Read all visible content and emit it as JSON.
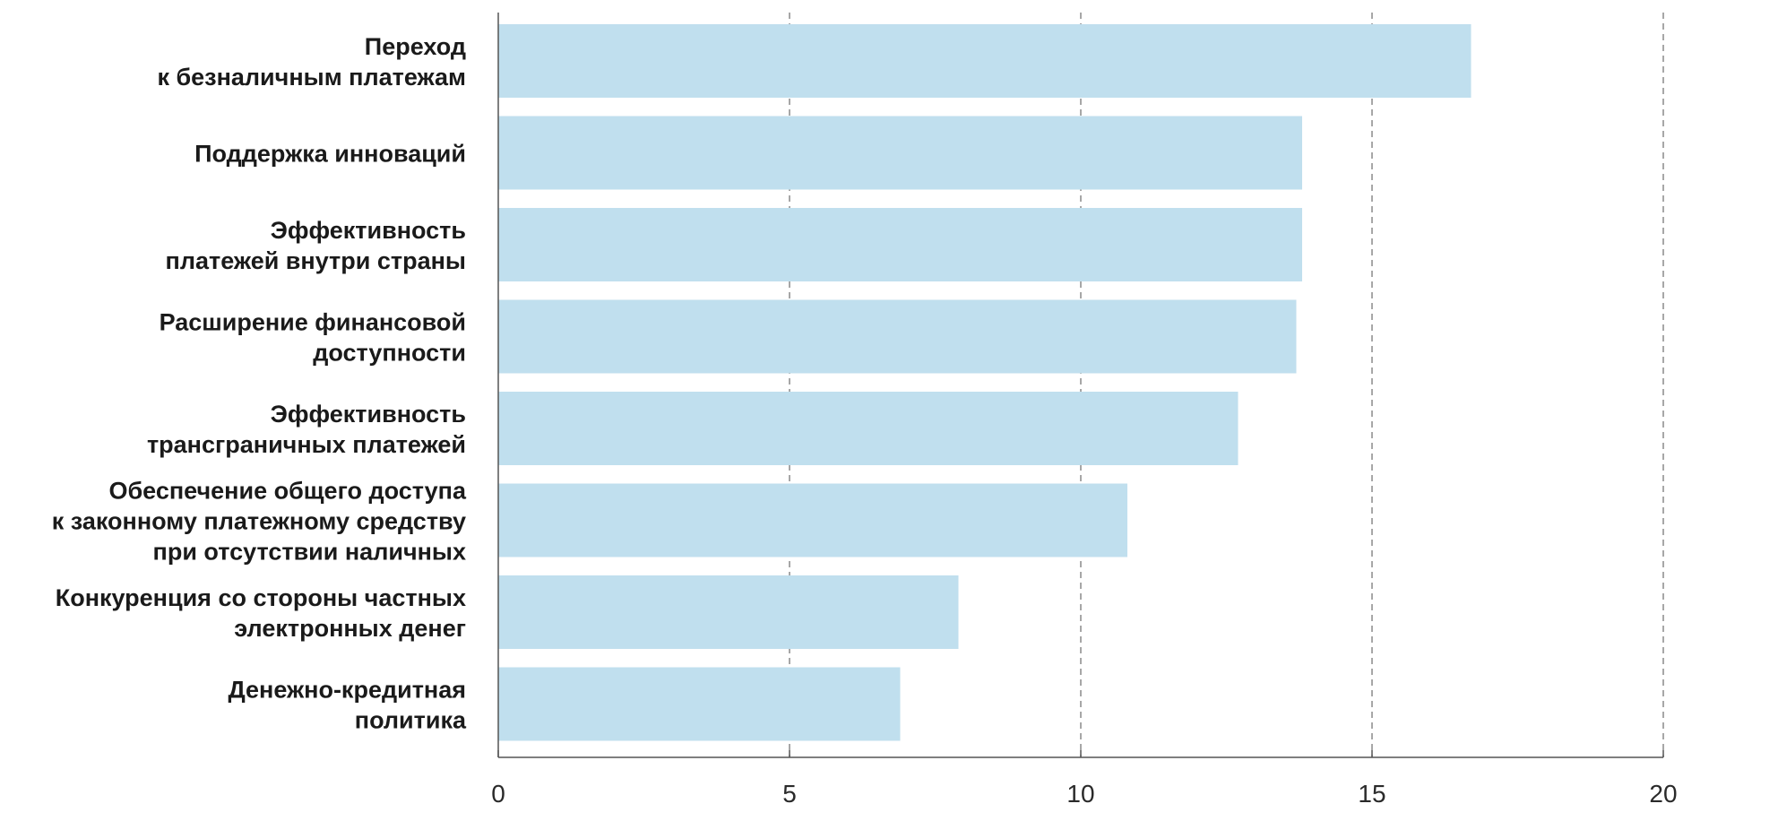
{
  "chart_data": {
    "type": "bar",
    "orientation": "horizontal",
    "categories": [
      [
        "Переход",
        "к безналичным платежам"
      ],
      [
        "Поддержка инноваций"
      ],
      [
        "Эффективность",
        "платежей внутри страны"
      ],
      [
        "Расширение финансовой",
        "доступности"
      ],
      [
        "Эффективность",
        "трансграничных  платежей"
      ],
      [
        "Обеспечение общего доступа",
        "к законному платежному средству",
        "при отсутствии наличных"
      ],
      [
        "Конкуренция со стороны частных",
        "электронных денег"
      ],
      [
        "Денежно-кредитная",
        "политика"
      ]
    ],
    "values": [
      16.7,
      13.8,
      13.8,
      13.7,
      12.7,
      10.8,
      7.9,
      6.9
    ],
    "xlim": [
      0,
      20
    ],
    "xticks": [
      0,
      5,
      10,
      15,
      20
    ],
    "tick_labels": [
      "0",
      "5",
      "10",
      "15",
      "20"
    ],
    "grid": "vertical dashed",
    "title": "",
    "xlabel": "",
    "ylabel": ""
  },
  "colors": {
    "bar": "#c0dfee",
    "grid": "#8a8a8a",
    "axis": "#555555"
  }
}
